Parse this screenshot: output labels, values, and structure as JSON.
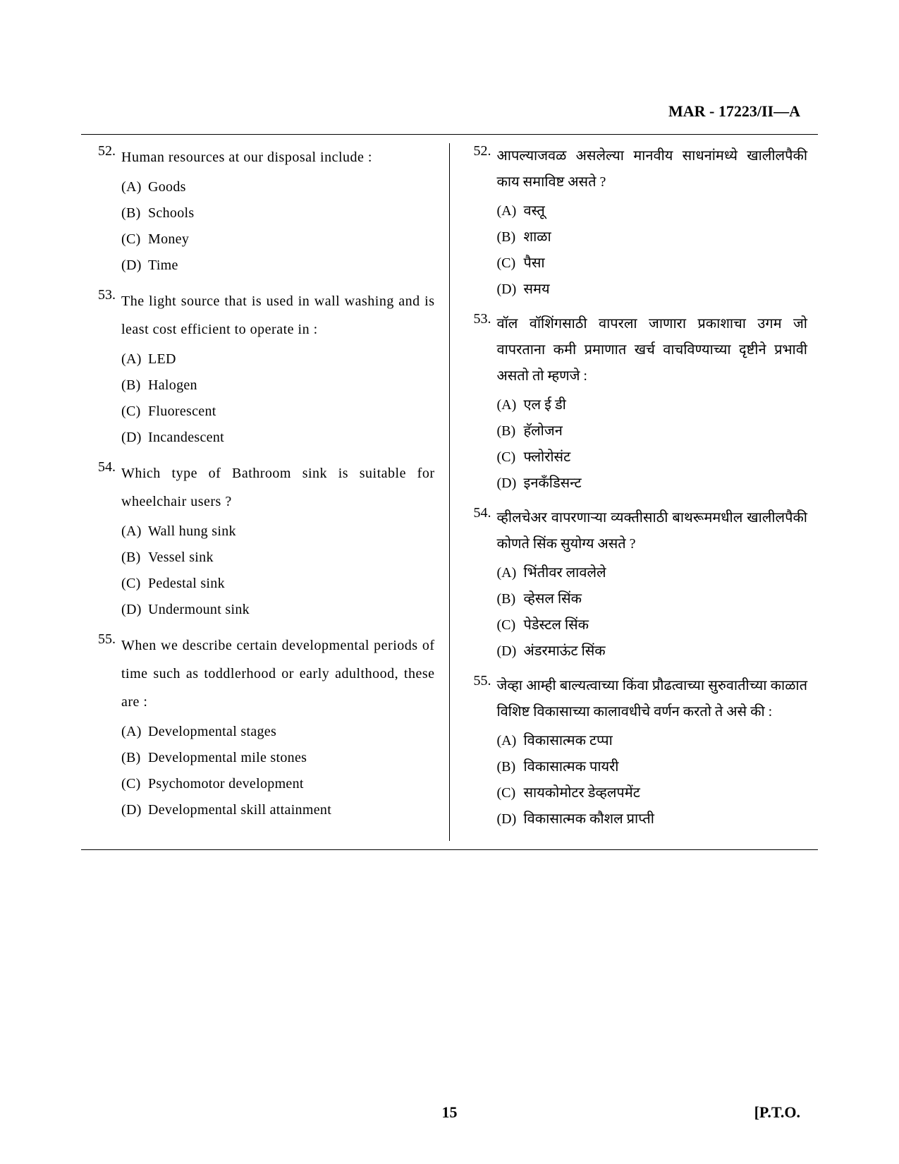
{
  "header": {
    "code": "MAR - 17223/II—A"
  },
  "footer": {
    "page_number": "15",
    "pto": "[P.T.O."
  },
  "left_column": {
    "questions": [
      {
        "number": "52.",
        "text": "Human resources at our disposal include :",
        "options": [
          {
            "label": "(A)",
            "text": "Goods"
          },
          {
            "label": "(B)",
            "text": "Schools"
          },
          {
            "label": "(C)",
            "text": "Money"
          },
          {
            "label": "(D)",
            "text": "Time"
          }
        ]
      },
      {
        "number": "53.",
        "text": "The light source that is used in wall washing and is least cost efficient to operate in :",
        "options": [
          {
            "label": "(A)",
            "text": "LED"
          },
          {
            "label": "(B)",
            "text": "Halogen"
          },
          {
            "label": "(C)",
            "text": "Fluorescent"
          },
          {
            "label": "(D)",
            "text": "Incandescent"
          }
        ]
      },
      {
        "number": "54.",
        "text": "Which type of Bathroom sink is suitable for wheelchair users ?",
        "options": [
          {
            "label": "(A)",
            "text": "Wall hung sink"
          },
          {
            "label": "(B)",
            "text": "Vessel sink"
          },
          {
            "label": "(C)",
            "text": "Pedestal sink"
          },
          {
            "label": "(D)",
            "text": "Undermount sink"
          }
        ]
      },
      {
        "number": "55.",
        "text": "When we describe certain developmental periods of time such as toddlerhood or early adulthood, these are :",
        "options": [
          {
            "label": "(A)",
            "text": "Developmental stages"
          },
          {
            "label": "(B)",
            "text": "Developmental mile stones"
          },
          {
            "label": "(C)",
            "text": "Psychomotor development"
          },
          {
            "label": "(D)",
            "text": "Developmental skill attainment"
          }
        ]
      }
    ]
  },
  "right_column": {
    "questions": [
      {
        "number": "52.",
        "text": "आपल्याजवळ असलेल्या मानवीय साधनांमध्ये खालीलपैकी काय समाविष्ट असते ?",
        "options": [
          {
            "label": "(A)",
            "text": "वस्तू"
          },
          {
            "label": "(B)",
            "text": "शाळा"
          },
          {
            "label": "(C)",
            "text": "पैसा"
          },
          {
            "label": "(D)",
            "text": "समय"
          }
        ]
      },
      {
        "number": "53.",
        "text": "वॉल वॉशिंगसाठी वापरला जाणारा प्रकाशाचा उगम जो वापरताना कमी प्रमाणात खर्च वाचविण्याच्या दृष्टीने प्रभावी असतो तो म्हणजे :",
        "options": [
          {
            "label": "(A)",
            "text": "एल ई डी"
          },
          {
            "label": "(B)",
            "text": "हॅलोजन"
          },
          {
            "label": "(C)",
            "text": "फ्लोरोसंट"
          },
          {
            "label": "(D)",
            "text": "इनकँडिसन्ट"
          }
        ]
      },
      {
        "number": "54.",
        "text": "व्हीलचेअर वापरणाऱ्या व्यक्तीसाठी बाथरूममधील खालीलपैकी कोणते सिंक सुयोग्य असते ?",
        "options": [
          {
            "label": "(A)",
            "text": "भिंतीवर लावलेले"
          },
          {
            "label": "(B)",
            "text": "व्हेसल सिंक"
          },
          {
            "label": "(C)",
            "text": "पेडेस्टल सिंक"
          },
          {
            "label": "(D)",
            "text": "अंडरमाऊंट सिंक"
          }
        ]
      },
      {
        "number": "55.",
        "text": "जेव्हा आम्ही बाल्यत्वाच्या किंवा प्रौढत्वाच्या सुरुवातीच्या काळात विशिष्ट विकासाच्या कालावधीचे वर्णन करतो ते असे की :",
        "options": [
          {
            "label": "(A)",
            "text": "विकासात्मक टप्पा"
          },
          {
            "label": "(B)",
            "text": "विकासात्मक पायरी"
          },
          {
            "label": "(C)",
            "text": "सायकोमोटर डेव्हलपमेंट"
          },
          {
            "label": "(D)",
            "text": "विकासात्मक कौशल प्राप्ती"
          }
        ]
      }
    ]
  }
}
